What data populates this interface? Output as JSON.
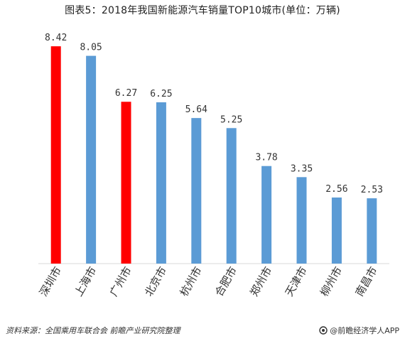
{
  "title": "图表5：2018年我国新能源汽车销量TOP10城市(单位：万辆)",
  "footer": {
    "source": "资料来源：全国乘用车联合会 前瞻产业研究院整理",
    "brand": "@前瞻经济学人APP"
  },
  "colors": {
    "highlight": "#ff0000",
    "normal": "#5b9bd5"
  },
  "chart_data": {
    "type": "bar",
    "title": "图表5：2018年我国新能源汽车销量TOP10城市(单位：万辆)",
    "xlabel": "",
    "ylabel": "",
    "ylim": [
      0,
      9
    ],
    "grid": false,
    "categories": [
      "深圳市",
      "上海市",
      "广州市",
      "北京市",
      "杭州市",
      "合肥市",
      "郑州市",
      "天津市",
      "柳州市",
      "南昌市"
    ],
    "values": [
      8.42,
      8.05,
      6.27,
      6.25,
      5.64,
      5.25,
      3.78,
      3.35,
      2.56,
      2.53
    ],
    "value_labels": [
      "8.42",
      "8.05",
      "6.27",
      "6.25",
      "5.64",
      "5.25",
      "3.78",
      "3.35",
      "2.56",
      "2.53"
    ],
    "highlighted": [
      "深圳市",
      "广州市"
    ]
  }
}
